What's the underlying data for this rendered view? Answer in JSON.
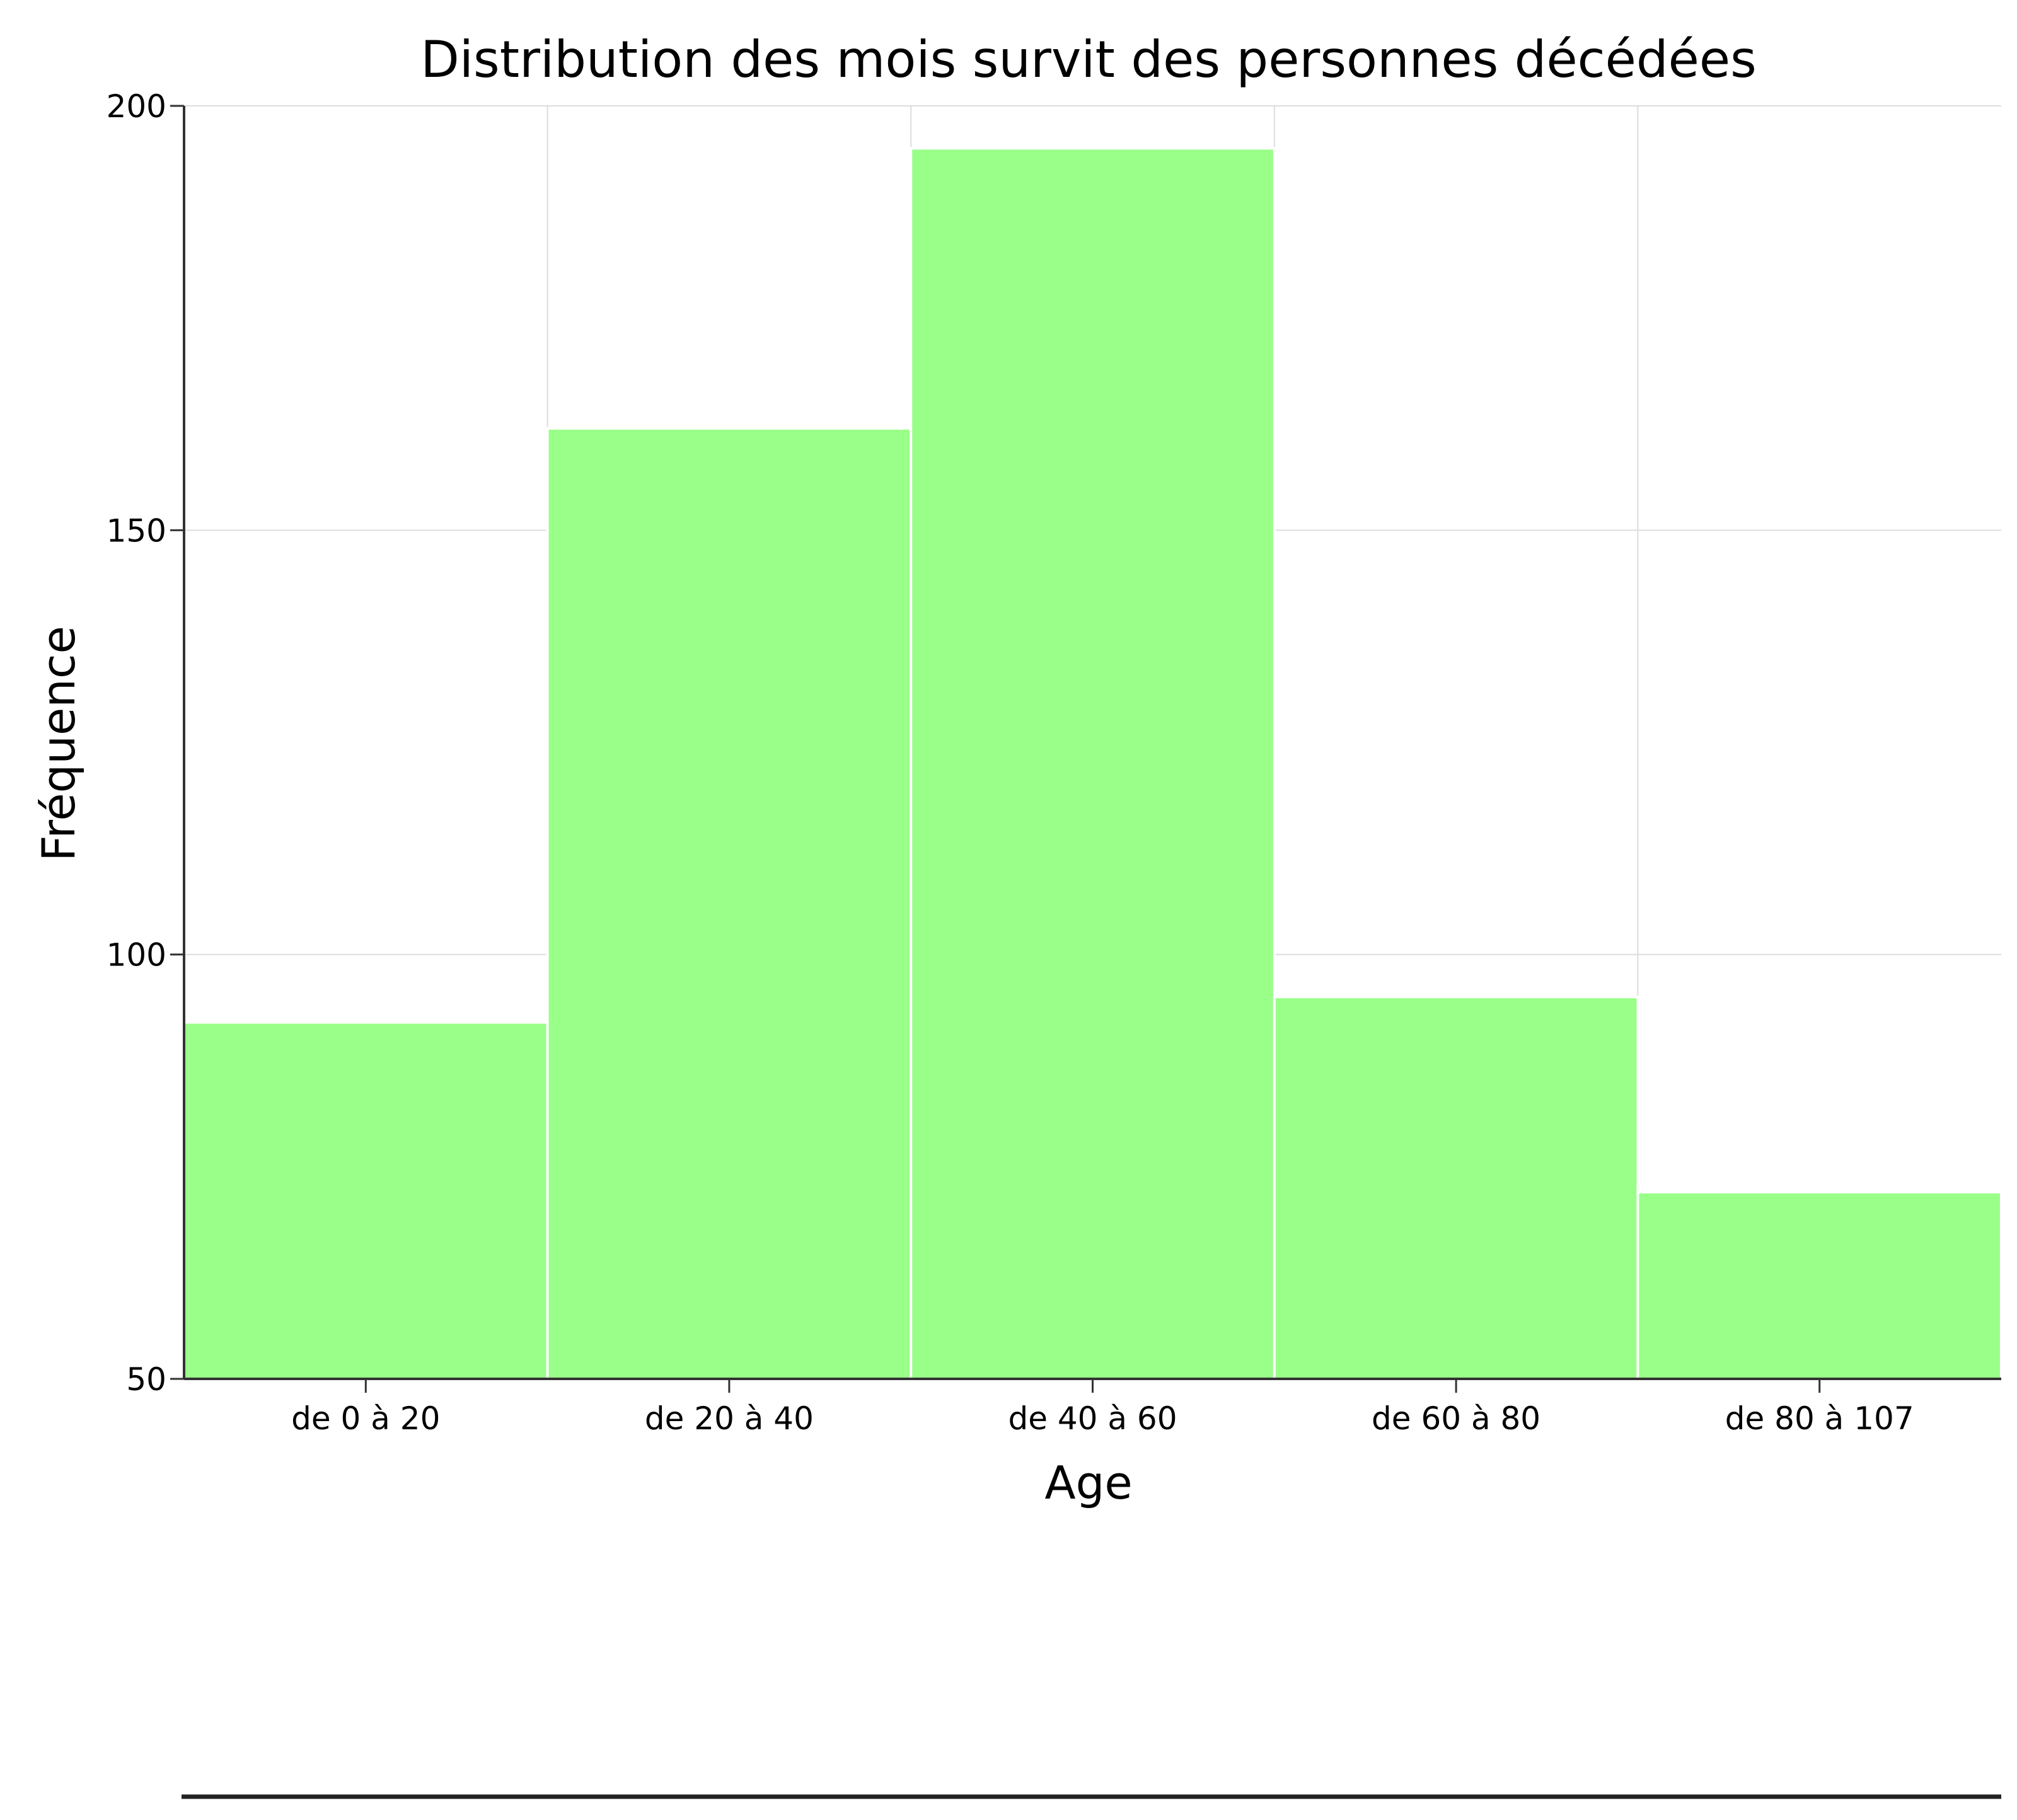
{
  "chart_data": {
    "type": "bar",
    "title": "Distribution des mois survit des personnes décédées",
    "xlabel": "Age",
    "ylabel": "Fréquence",
    "categories": [
      "de 0 à 20",
      "de 20 à 40",
      "de 40 à 60",
      "de 60 à 80",
      "de 80 à 107"
    ],
    "values": [
      92,
      162,
      195,
      95,
      72
    ],
    "ylim": [
      50,
      200
    ],
    "yticks": [
      "50",
      "100",
      "150",
      "200"
    ],
    "grid": true,
    "bar_color": "#99ff88"
  }
}
